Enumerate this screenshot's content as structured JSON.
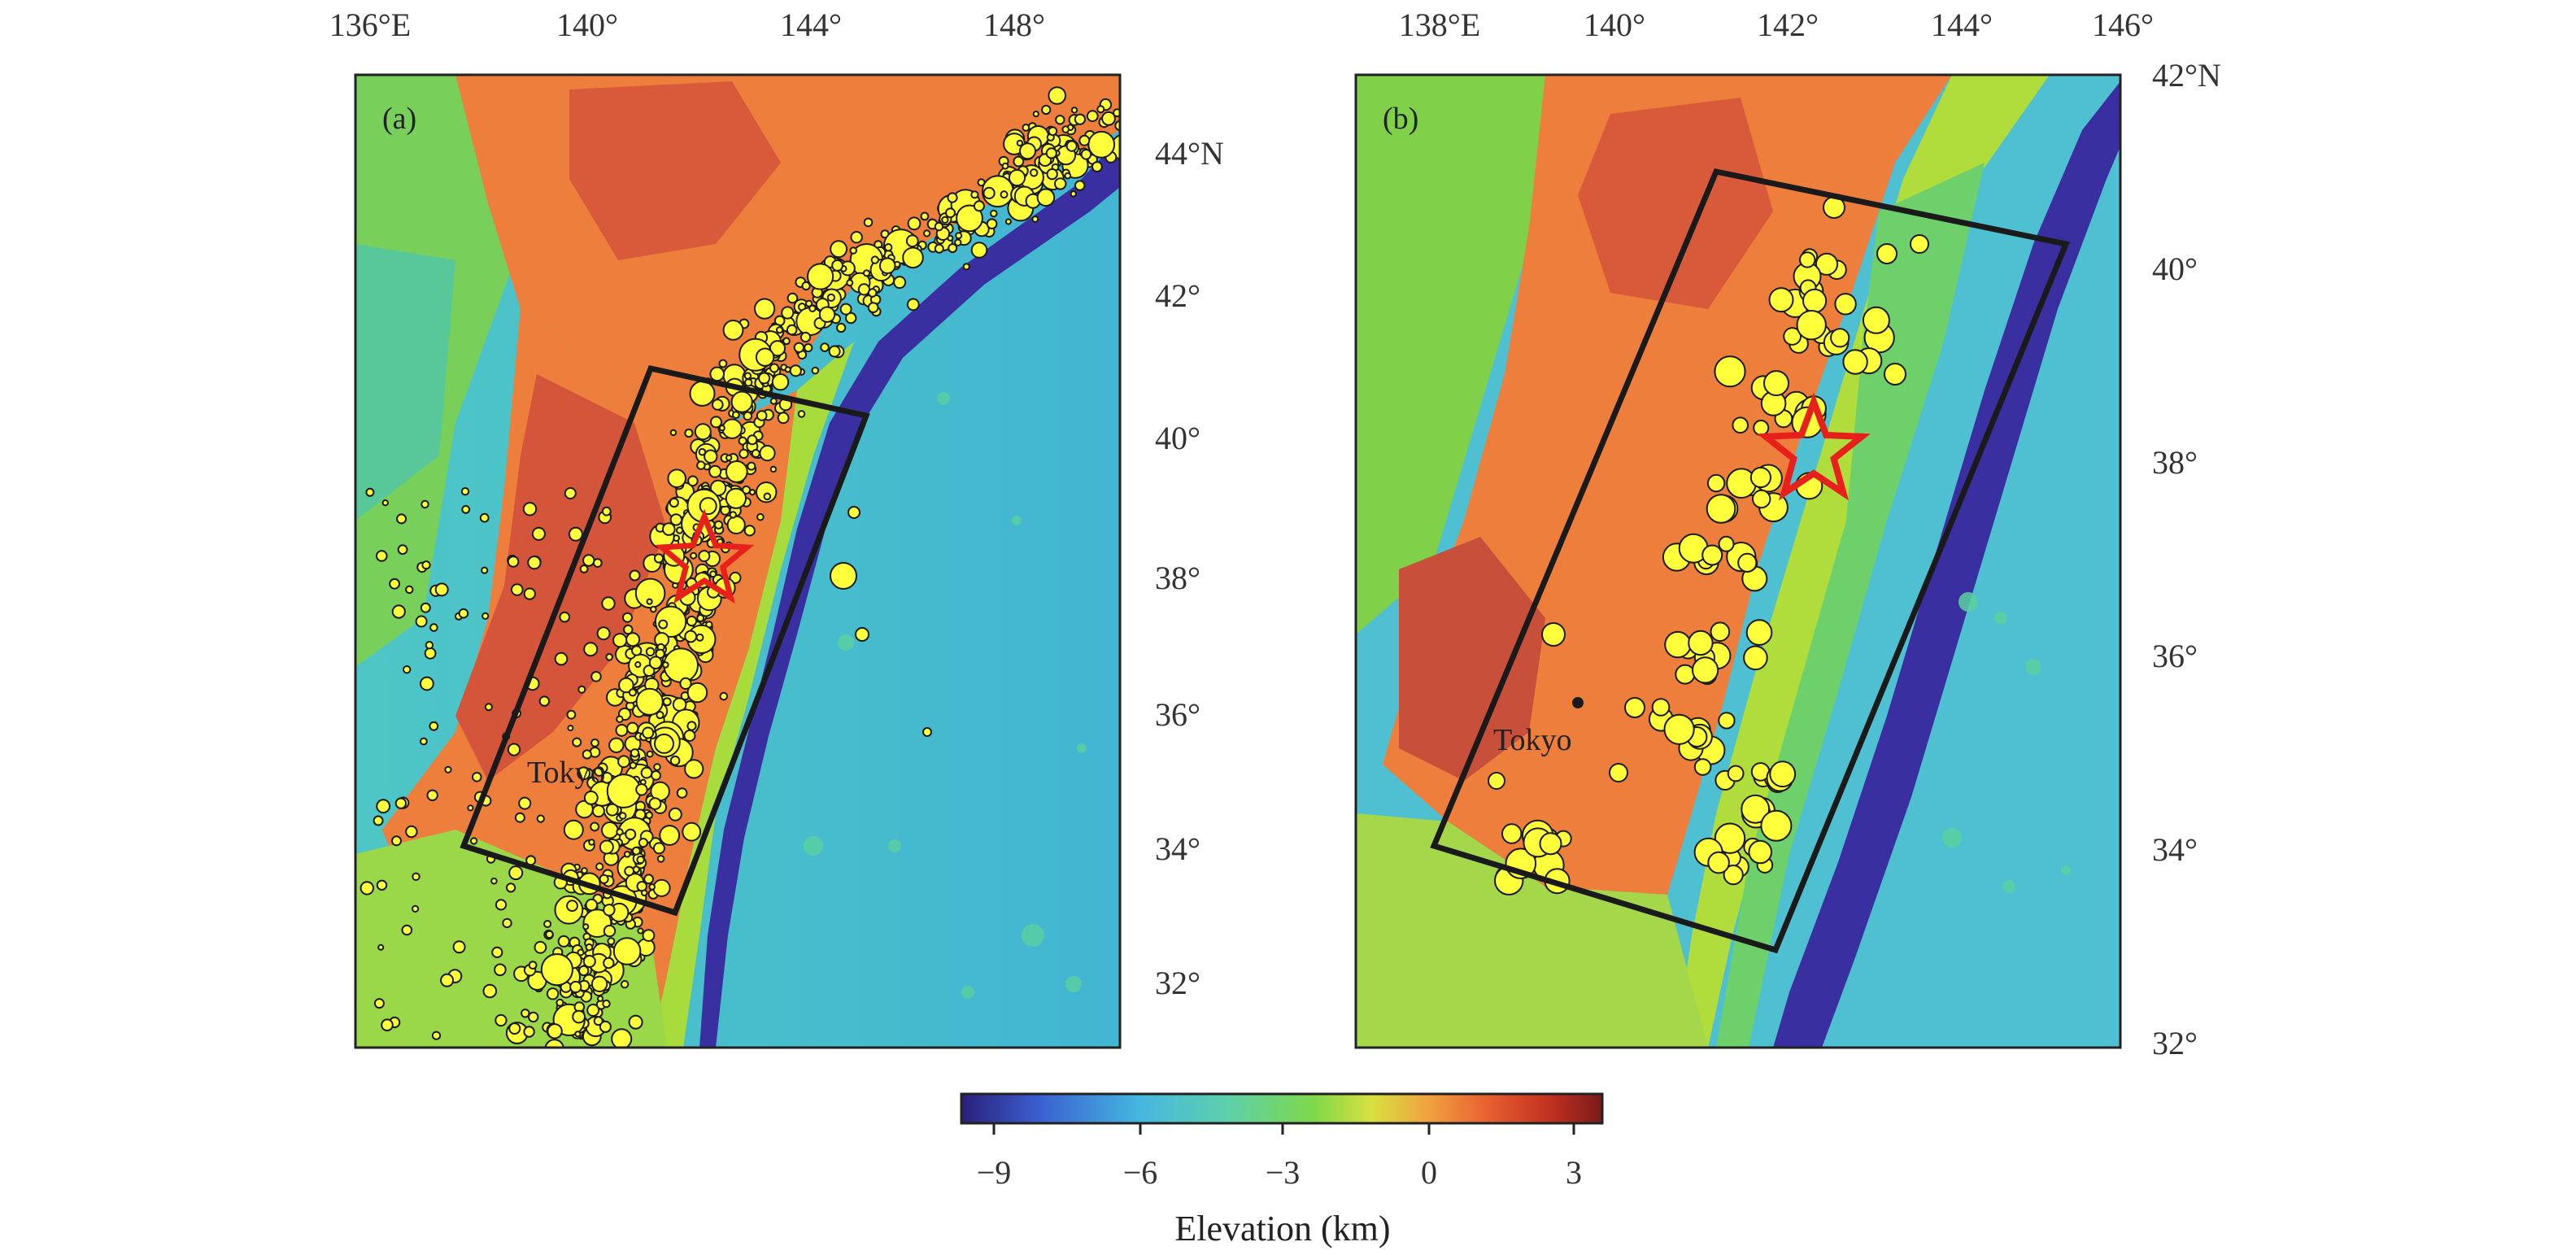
{
  "panel_a": {
    "label": "(a)",
    "lon_ticks": [
      "136°E",
      "140°",
      "144°",
      "148°"
    ],
    "lat_ticks": [
      "44°N",
      "42°",
      "40°",
      "38°",
      "36°",
      "34°",
      "32°"
    ],
    "city": "Tokyo"
  },
  "panel_b": {
    "label": "(b)",
    "lon_ticks": [
      "138°E",
      "140°",
      "142°",
      "144°",
      "146°"
    ],
    "lat_ticks": [
      "42°N",
      "40°",
      "38°",
      "36°",
      "34°",
      "32°"
    ],
    "city": "Tokyo"
  },
  "colorbar": {
    "ticks": [
      "−9",
      "−6",
      "−3",
      "0",
      "3"
    ],
    "label": "Elevation (km)",
    "colors": [
      "#2a1f7a",
      "#3a5fd0",
      "#45b8e0",
      "#5fd0a8",
      "#7fd84a",
      "#d8e040",
      "#f0a040",
      "#e86030",
      "#c03020",
      "#7a1a1a"
    ]
  },
  "colors": {
    "deep_trench": "#3a2fa0",
    "ocean": "#4fc4c4",
    "shelf": "#6fd07a",
    "land": "#ee7e3c",
    "mountain": "#d0553a",
    "quake": "#ffff3c",
    "star": "#e8201c",
    "box": "#1a1a1a"
  }
}
